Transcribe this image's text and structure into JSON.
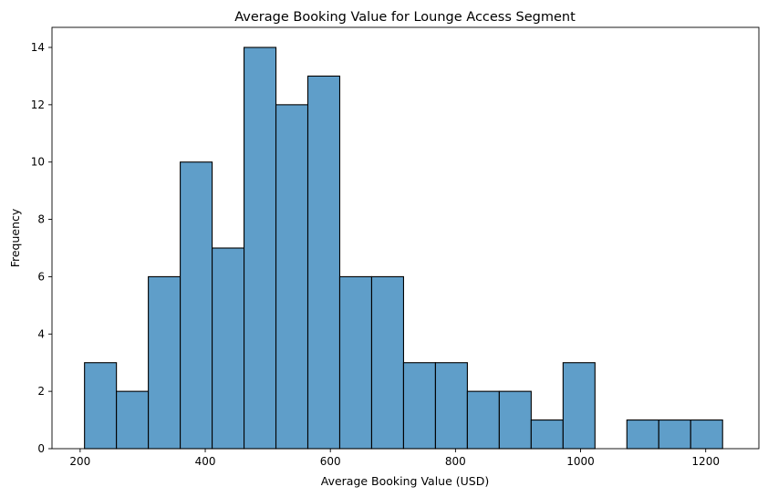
{
  "chart_data": {
    "type": "bar",
    "title": "Average Booking Value for Lounge Access Segment",
    "xlabel": "Average Booking Value (USD)",
    "ylabel": "Frequency",
    "xlim": [
      155,
      1285
    ],
    "ylim": [
      0,
      14.7
    ],
    "xticks": [
      200,
      400,
      600,
      800,
      1000,
      1200
    ],
    "yticks": [
      0,
      2,
      4,
      6,
      8,
      10,
      12,
      14
    ],
    "grid": false,
    "legend": "none",
    "bar_color": "#5f9ec9",
    "edge_color": "#000000",
    "bins": [
      {
        "x0": 207,
        "x1": 258,
        "value": 3
      },
      {
        "x0": 258,
        "x1": 309,
        "value": 2
      },
      {
        "x0": 309,
        "x1": 360,
        "value": 6
      },
      {
        "x0": 360,
        "x1": 411,
        "value": 10
      },
      {
        "x0": 411,
        "x1": 462,
        "value": 7
      },
      {
        "x0": 462,
        "x1": 513,
        "value": 14
      },
      {
        "x0": 513,
        "x1": 564,
        "value": 12
      },
      {
        "x0": 564,
        "x1": 615,
        "value": 13
      },
      {
        "x0": 615,
        "x1": 666,
        "value": 6
      },
      {
        "x0": 666,
        "x1": 717,
        "value": 6
      },
      {
        "x0": 717,
        "x1": 768,
        "value": 3
      },
      {
        "x0": 768,
        "x1": 819,
        "value": 3
      },
      {
        "x0": 819,
        "x1": 870,
        "value": 2
      },
      {
        "x0": 870,
        "x1": 921,
        "value": 2
      },
      {
        "x0": 921,
        "x1": 972,
        "value": 1
      },
      {
        "x0": 972,
        "x1": 1023,
        "value": 3
      },
      {
        "x0": 1023,
        "x1": 1074,
        "value": 0
      },
      {
        "x0": 1074,
        "x1": 1125,
        "value": 1
      },
      {
        "x0": 1125,
        "x1": 1176,
        "value": 1
      },
      {
        "x0": 1176,
        "x1": 1227,
        "value": 1
      }
    ]
  }
}
